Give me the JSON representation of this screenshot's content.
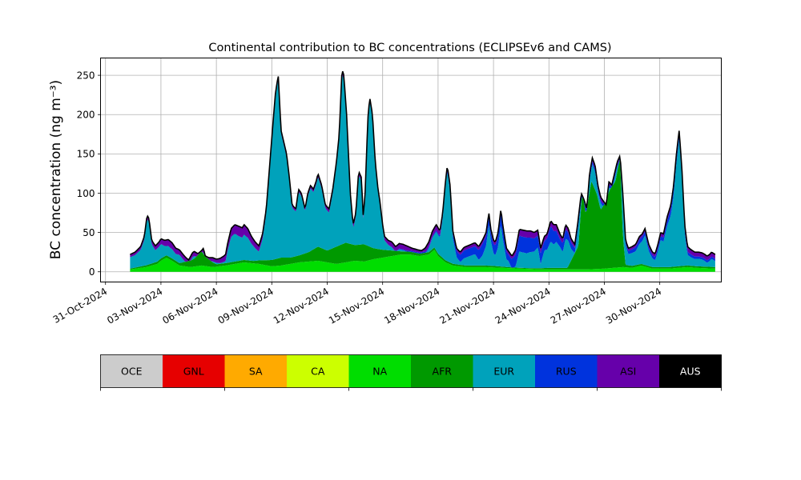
{
  "chart_data": {
    "type": "area",
    "stacked": true,
    "title": "Continental contribution to BC concentrations (ECLIPSEv6 and CAMS)",
    "ylabel": "BC concentration (ng m⁻³)",
    "xlabel": "",
    "grid": true,
    "ylim": [
      -13,
      272
    ],
    "yticks": [
      0,
      50,
      100,
      150,
      200,
      250
    ],
    "xlim": [
      -0.27,
      33.33
    ],
    "xticks": [
      0,
      3,
      6,
      9,
      12,
      15,
      18,
      21,
      24,
      27,
      30
    ],
    "xtick_labels": [
      "31-Oct-2024",
      "03-Nov-2024",
      "06-Nov-2024",
      "09-Nov-2024",
      "12-Nov-2024",
      "15-Nov-2024",
      "18-Nov-2024",
      "21-Nov-2024",
      "24-Nov-2024",
      "27-Nov-2024",
      "30-Nov-2024"
    ],
    "x_unit": "days after 31-Oct-2024 00:00",
    "total": [
      [
        1.33,
        22
      ],
      [
        1.6,
        25
      ],
      [
        1.9,
        32
      ],
      [
        2.1,
        45
      ],
      [
        2.25,
        72
      ],
      [
        2.35,
        68
      ],
      [
        2.5,
        40
      ],
      [
        2.7,
        33
      ],
      [
        2.9,
        38
      ],
      [
        3.0,
        42
      ],
      [
        3.2,
        40
      ],
      [
        3.4,
        41
      ],
      [
        3.6,
        37
      ],
      [
        3.8,
        30
      ],
      [
        4.0,
        28
      ],
      [
        4.2,
        22
      ],
      [
        4.35,
        18
      ],
      [
        4.5,
        15
      ],
      [
        4.7,
        24
      ],
      [
        4.8,
        26
      ],
      [
        5.0,
        23
      ],
      [
        5.2,
        27
      ],
      [
        5.3,
        30
      ],
      [
        5.4,
        20
      ],
      [
        5.6,
        18
      ],
      [
        5.8,
        18
      ],
      [
        6.0,
        16
      ],
      [
        6.2,
        17
      ],
      [
        6.4,
        20
      ],
      [
        6.5,
        22
      ],
      [
        6.6,
        35
      ],
      [
        6.8,
        55
      ],
      [
        7.0,
        60
      ],
      [
        7.2,
        58
      ],
      [
        7.4,
        56
      ],
      [
        7.5,
        60
      ],
      [
        7.7,
        55
      ],
      [
        7.9,
        45
      ],
      [
        8.1,
        38
      ],
      [
        8.3,
        33
      ],
      [
        8.5,
        48
      ],
      [
        8.7,
        80
      ],
      [
        8.9,
        140
      ],
      [
        9.05,
        185
      ],
      [
        9.2,
        228
      ],
      [
        9.35,
        250
      ],
      [
        9.5,
        180
      ],
      [
        9.6,
        170
      ],
      [
        9.8,
        150
      ],
      [
        9.95,
        120
      ],
      [
        10.1,
        85
      ],
      [
        10.3,
        80
      ],
      [
        10.45,
        105
      ],
      [
        10.6,
        100
      ],
      [
        10.8,
        80
      ],
      [
        10.95,
        100
      ],
      [
        11.1,
        110
      ],
      [
        11.25,
        105
      ],
      [
        11.4,
        115
      ],
      [
        11.5,
        125
      ],
      [
        11.7,
        110
      ],
      [
        11.9,
        85
      ],
      [
        12.1,
        80
      ],
      [
        12.3,
        105
      ],
      [
        12.5,
        140
      ],
      [
        12.65,
        175
      ],
      [
        12.8,
        258
      ],
      [
        12.9,
        250
      ],
      [
        13.05,
        200
      ],
      [
        13.25,
        100
      ],
      [
        13.4,
        60
      ],
      [
        13.55,
        75
      ],
      [
        13.7,
        128
      ],
      [
        13.85,
        120
      ],
      [
        13.95,
        70
      ],
      [
        14.05,
        100
      ],
      [
        14.2,
        195
      ],
      [
        14.3,
        222
      ],
      [
        14.45,
        200
      ],
      [
        14.6,
        140
      ],
      [
        14.75,
        105
      ],
      [
        14.85,
        90
      ],
      [
        15.0,
        60
      ],
      [
        15.1,
        45
      ],
      [
        15.3,
        40
      ],
      [
        15.5,
        38
      ],
      [
        15.7,
        32
      ],
      [
        15.9,
        36
      ],
      [
        16.1,
        35
      ],
      [
        16.3,
        33
      ],
      [
        16.6,
        30
      ],
      [
        16.9,
        28
      ],
      [
        17.1,
        27
      ],
      [
        17.3,
        30
      ],
      [
        17.5,
        38
      ],
      [
        17.7,
        52
      ],
      [
        17.9,
        60
      ],
      [
        18.1,
        52
      ],
      [
        18.25,
        75
      ],
      [
        18.4,
        115
      ],
      [
        18.5,
        135
      ],
      [
        18.65,
        110
      ],
      [
        18.8,
        52
      ],
      [
        19.0,
        30
      ],
      [
        19.2,
        25
      ],
      [
        19.4,
        31
      ],
      [
        19.6,
        33
      ],
      [
        19.8,
        35
      ],
      [
        20.0,
        37
      ],
      [
        20.2,
        32
      ],
      [
        20.4,
        40
      ],
      [
        20.6,
        50
      ],
      [
        20.75,
        75
      ],
      [
        20.85,
        55
      ],
      [
        21.0,
        40
      ],
      [
        21.1,
        38
      ],
      [
        21.25,
        50
      ],
      [
        21.4,
        80
      ],
      [
        21.5,
        60
      ],
      [
        21.6,
        45
      ],
      [
        21.7,
        30
      ],
      [
        21.85,
        25
      ],
      [
        22.0,
        20
      ],
      [
        22.2,
        28
      ],
      [
        22.4,
        54
      ],
      [
        22.6,
        53
      ],
      [
        22.8,
        52
      ],
      [
        23.0,
        52
      ],
      [
        23.2,
        50
      ],
      [
        23.4,
        53
      ],
      [
        23.55,
        30
      ],
      [
        23.75,
        45
      ],
      [
        23.9,
        48
      ],
      [
        24.1,
        65
      ],
      [
        24.25,
        60
      ],
      [
        24.4,
        60
      ],
      [
        24.6,
        48
      ],
      [
        24.75,
        42
      ],
      [
        24.9,
        60
      ],
      [
        25.05,
        55
      ],
      [
        25.2,
        42
      ],
      [
        25.4,
        35
      ],
      [
        25.55,
        60
      ],
      [
        25.75,
        100
      ],
      [
        25.9,
        92
      ],
      [
        26.05,
        80
      ],
      [
        26.2,
        125
      ],
      [
        26.35,
        145
      ],
      [
        26.5,
        135
      ],
      [
        26.65,
        110
      ],
      [
        26.8,
        95
      ],
      [
        26.95,
        90
      ],
      [
        27.1,
        85
      ],
      [
        27.25,
        115
      ],
      [
        27.4,
        110
      ],
      [
        27.55,
        125
      ],
      [
        27.7,
        140
      ],
      [
        27.85,
        148
      ],
      [
        28.0,
        100
      ],
      [
        28.15,
        40
      ],
      [
        28.3,
        30
      ],
      [
        28.5,
        32
      ],
      [
        28.7,
        35
      ],
      [
        28.9,
        45
      ],
      [
        29.05,
        48
      ],
      [
        29.2,
        55
      ],
      [
        29.4,
        35
      ],
      [
        29.6,
        25
      ],
      [
        29.75,
        23
      ],
      [
        29.9,
        35
      ],
      [
        30.05,
        50
      ],
      [
        30.2,
        48
      ],
      [
        30.4,
        70
      ],
      [
        30.6,
        85
      ],
      [
        30.75,
        110
      ],
      [
        30.9,
        150
      ],
      [
        31.05,
        180
      ],
      [
        31.2,
        130
      ],
      [
        31.35,
        60
      ],
      [
        31.5,
        32
      ],
      [
        31.7,
        28
      ],
      [
        31.9,
        25
      ],
      [
        32.1,
        25
      ],
      [
        32.3,
        24
      ],
      [
        32.45,
        22
      ],
      [
        32.55,
        20
      ],
      [
        32.7,
        22
      ],
      [
        32.8,
        25
      ],
      [
        33.0,
        22
      ]
    ],
    "components": {
      "NA": [
        [
          1.33,
          3
        ],
        [
          2.2,
          6
        ],
        [
          2.8,
          10
        ],
        [
          3.0,
          14
        ],
        [
          3.3,
          18
        ],
        [
          3.6,
          14
        ],
        [
          4.0,
          8
        ],
        [
          4.6,
          6
        ],
        [
          5.2,
          8
        ],
        [
          5.8,
          6
        ],
        [
          6.5,
          8
        ],
        [
          7.0,
          10
        ],
        [
          7.5,
          12
        ],
        [
          8.3,
          10
        ],
        [
          9.0,
          7
        ],
        [
          9.5,
          8
        ],
        [
          10.0,
          10
        ],
        [
          10.5,
          12
        ],
        [
          11.0,
          13
        ],
        [
          11.5,
          14
        ],
        [
          12.0,
          12
        ],
        [
          12.5,
          10
        ],
        [
          13.0,
          12
        ],
        [
          13.5,
          14
        ],
        [
          14.0,
          13
        ],
        [
          14.5,
          16
        ],
        [
          15.0,
          18
        ],
        [
          15.5,
          20
        ],
        [
          16.0,
          22
        ],
        [
          16.5,
          22
        ],
        [
          17.0,
          20
        ],
        [
          17.5,
          22
        ],
        [
          17.8,
          28
        ],
        [
          18.0,
          20
        ],
        [
          18.4,
          12
        ],
        [
          18.8,
          8
        ],
        [
          19.5,
          6
        ],
        [
          20.5,
          6
        ],
        [
          21.5,
          5
        ],
        [
          22.5,
          4
        ],
        [
          23.5,
          3
        ],
        [
          24.5,
          3
        ],
        [
          25.5,
          3
        ],
        [
          26.0,
          3
        ],
        [
          27.0,
          4
        ],
        [
          28.0,
          6
        ],
        [
          28.5,
          5
        ],
        [
          29.0,
          8
        ],
        [
          29.3,
          6
        ],
        [
          29.6,
          4
        ],
        [
          30.5,
          4
        ],
        [
          31.0,
          5
        ],
        [
          31.5,
          6
        ],
        [
          32.0,
          5
        ],
        [
          33.0,
          4
        ]
      ],
      "AFR": [
        [
          1.33,
          1
        ],
        [
          2.0,
          2
        ],
        [
          3.0,
          3
        ],
        [
          4.0,
          3
        ],
        [
          4.8,
          10
        ],
        [
          5.2,
          18
        ],
        [
          5.4,
          12
        ],
        [
          6.0,
          3
        ],
        [
          7.0,
          3
        ],
        [
          8.0,
          3
        ],
        [
          9.0,
          8
        ],
        [
          9.5,
          10
        ],
        [
          10.0,
          8
        ],
        [
          10.5,
          9
        ],
        [
          11.0,
          12
        ],
        [
          11.5,
          18
        ],
        [
          12.0,
          15
        ],
        [
          12.5,
          22
        ],
        [
          13.0,
          25
        ],
        [
          13.5,
          20
        ],
        [
          14.0,
          22
        ],
        [
          14.5,
          14
        ],
        [
          15.0,
          10
        ],
        [
          16.0,
          4
        ],
        [
          17.0,
          3
        ],
        [
          18.0,
          3
        ],
        [
          19.0,
          2
        ],
        [
          20.0,
          2
        ],
        [
          21.0,
          2
        ],
        [
          22.0,
          1
        ],
        [
          23.0,
          1
        ],
        [
          24.0,
          2
        ],
        [
          25.0,
          2
        ],
        [
          25.6,
          30
        ],
        [
          25.8,
          100
        ],
        [
          26.0,
          70
        ],
        [
          26.3,
          112
        ],
        [
          26.6,
          95
        ],
        [
          26.8,
          75
        ],
        [
          27.0,
          82
        ],
        [
          27.3,
          100
        ],
        [
          27.6,
          110
        ],
        [
          27.85,
          140
        ],
        [
          28.0,
          40
        ],
        [
          28.15,
          3
        ],
        [
          29.0,
          2
        ],
        [
          30.0,
          2
        ],
        [
          31.0,
          2
        ],
        [
          32.0,
          2
        ],
        [
          33.0,
          2
        ]
      ],
      "RUS": [
        [
          1.33,
          0
        ],
        [
          9.0,
          0
        ],
        [
          12.0,
          0
        ],
        [
          15.0,
          0
        ],
        [
          16.0,
          1
        ],
        [
          18.5,
          2
        ],
        [
          18.8,
          5
        ],
        [
          19.0,
          8
        ],
        [
          19.4,
          10
        ],
        [
          20.0,
          10
        ],
        [
          20.4,
          15
        ],
        [
          20.8,
          10
        ],
        [
          21.0,
          12
        ],
        [
          21.4,
          15
        ],
        [
          21.8,
          8
        ],
        [
          22.2,
          15
        ],
        [
          22.4,
          20
        ],
        [
          22.8,
          20
        ],
        [
          23.4,
          15
        ],
        [
          23.8,
          12
        ],
        [
          24.1,
          20
        ],
        [
          24.6,
          10
        ],
        [
          24.9,
          12
        ],
        [
          25.2,
          8
        ],
        [
          25.6,
          5
        ],
        [
          26.0,
          4
        ],
        [
          27.0,
          3
        ],
        [
          28.0,
          3
        ],
        [
          28.9,
          6
        ],
        [
          29.2,
          5
        ],
        [
          29.6,
          4
        ],
        [
          30.2,
          5
        ],
        [
          30.6,
          8
        ],
        [
          31.0,
          6
        ],
        [
          31.5,
          4
        ],
        [
          32.0,
          3
        ],
        [
          33.0,
          3
        ]
      ],
      "ASI": [
        [
          1.33,
          3
        ],
        [
          2.3,
          4
        ],
        [
          3.0,
          6
        ],
        [
          3.5,
          8
        ],
        [
          4.0,
          6
        ],
        [
          5.0,
          5
        ],
        [
          6.0,
          4
        ],
        [
          6.8,
          10
        ],
        [
          7.2,
          12
        ],
        [
          7.6,
          12
        ],
        [
          8.0,
          8
        ],
        [
          8.5,
          6
        ],
        [
          9.2,
          4
        ],
        [
          10.0,
          3
        ],
        [
          11.0,
          3
        ],
        [
          12.0,
          4
        ],
        [
          13.0,
          5
        ],
        [
          14.0,
          4
        ],
        [
          15.0,
          4
        ],
        [
          15.5,
          6
        ],
        [
          16.0,
          6
        ],
        [
          17.0,
          5
        ],
        [
          17.5,
          6
        ],
        [
          18.0,
          7
        ],
        [
          18.5,
          4
        ],
        [
          19.0,
          3
        ],
        [
          20.0,
          4
        ],
        [
          21.0,
          4
        ],
        [
          22.0,
          4
        ],
        [
          22.5,
          8
        ],
        [
          23.0,
          8
        ],
        [
          23.5,
          6
        ],
        [
          24.0,
          5
        ],
        [
          24.3,
          8
        ],
        [
          24.6,
          6
        ],
        [
          25.0,
          5
        ],
        [
          25.5,
          4
        ],
        [
          26.0,
          4
        ],
        [
          27.0,
          4
        ],
        [
          28.0,
          3
        ],
        [
          29.0,
          3
        ],
        [
          30.0,
          4
        ],
        [
          31.0,
          5
        ],
        [
          31.5,
          6
        ],
        [
          32.0,
          5
        ],
        [
          33.0,
          5
        ]
      ],
      "AUS": [
        [
          1.33,
          0.5
        ],
        [
          33.0,
          0.5
        ]
      ]
    },
    "legend": [
      {
        "label": "OCE",
        "color": "#cccccc"
      },
      {
        "label": "GNL",
        "color": "#e60000"
      },
      {
        "label": "SA",
        "color": "#ffaa00"
      },
      {
        "label": "CA",
        "color": "#ccff00"
      },
      {
        "label": "NA",
        "color": "#00dd00"
      },
      {
        "label": "AFR",
        "color": "#009900"
      },
      {
        "label": "EUR",
        "color": "#00a2bb"
      },
      {
        "label": "RUS",
        "color": "#0033dd"
      },
      {
        "label": "ASI",
        "color": "#6600aa"
      },
      {
        "label": "AUS",
        "color": "#000000"
      }
    ]
  }
}
